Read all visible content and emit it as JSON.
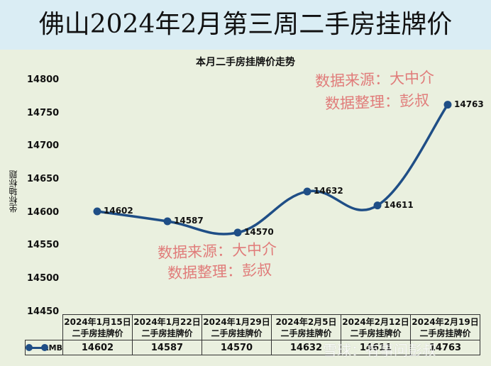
{
  "header": {
    "title": "佛山2024年2月第三周二手房挂牌价"
  },
  "chart": {
    "title": "本月二手房挂牌价走势",
    "y_axis_label": "坐标轴标题",
    "y_ticks": [
      "14800",
      "14750",
      "14700",
      "14650",
      "14600",
      "14550",
      "14500",
      "14450"
    ],
    "series_name": "RMB",
    "line_color": "#1f4e86",
    "columns": [
      {
        "date": "2024年1月15日",
        "sub": "二手房挂牌价",
        "value": "14602"
      },
      {
        "date": "2024年1月22日",
        "sub": "二手房挂牌价",
        "value": "14587"
      },
      {
        "date": "2024年1月29日",
        "sub": "二手房挂牌价",
        "value": "14570"
      },
      {
        "date": "2024年2月5日",
        "sub": "二手房挂牌价",
        "value": "14632"
      },
      {
        "date": "2024年2月12日",
        "sub": "二手房挂牌价",
        "value": "14611"
      },
      {
        "date": "2024年2月19日",
        "sub": "二手房挂牌价",
        "value": "14763"
      }
    ]
  },
  "watermarks": {
    "source_line": "数据来源：大中介",
    "editor_line": "数据整理：彭叔",
    "platform": "雪球：有事问彭叔"
  },
  "chart_data": {
    "type": "line",
    "title": "本月二手房挂牌价走势",
    "xlabel": "",
    "ylabel": "坐标轴标题",
    "categories": [
      "2024年1月15日 二手房挂牌价",
      "2024年1月22日 二手房挂牌价",
      "2024年1月29日 二手房挂牌价",
      "2024年2月5日 二手房挂牌价",
      "2024年2月12日 二手房挂牌价",
      "2024年2月19日 二手房挂牌价"
    ],
    "series": [
      {
        "name": "RMB",
        "values": [
          14602,
          14587,
          14570,
          14632,
          14611,
          14763
        ]
      }
    ],
    "ylim": [
      14450,
      14800
    ],
    "grid": false,
    "legend_position": "data-table",
    "data_labels": true,
    "smooth": true
  }
}
